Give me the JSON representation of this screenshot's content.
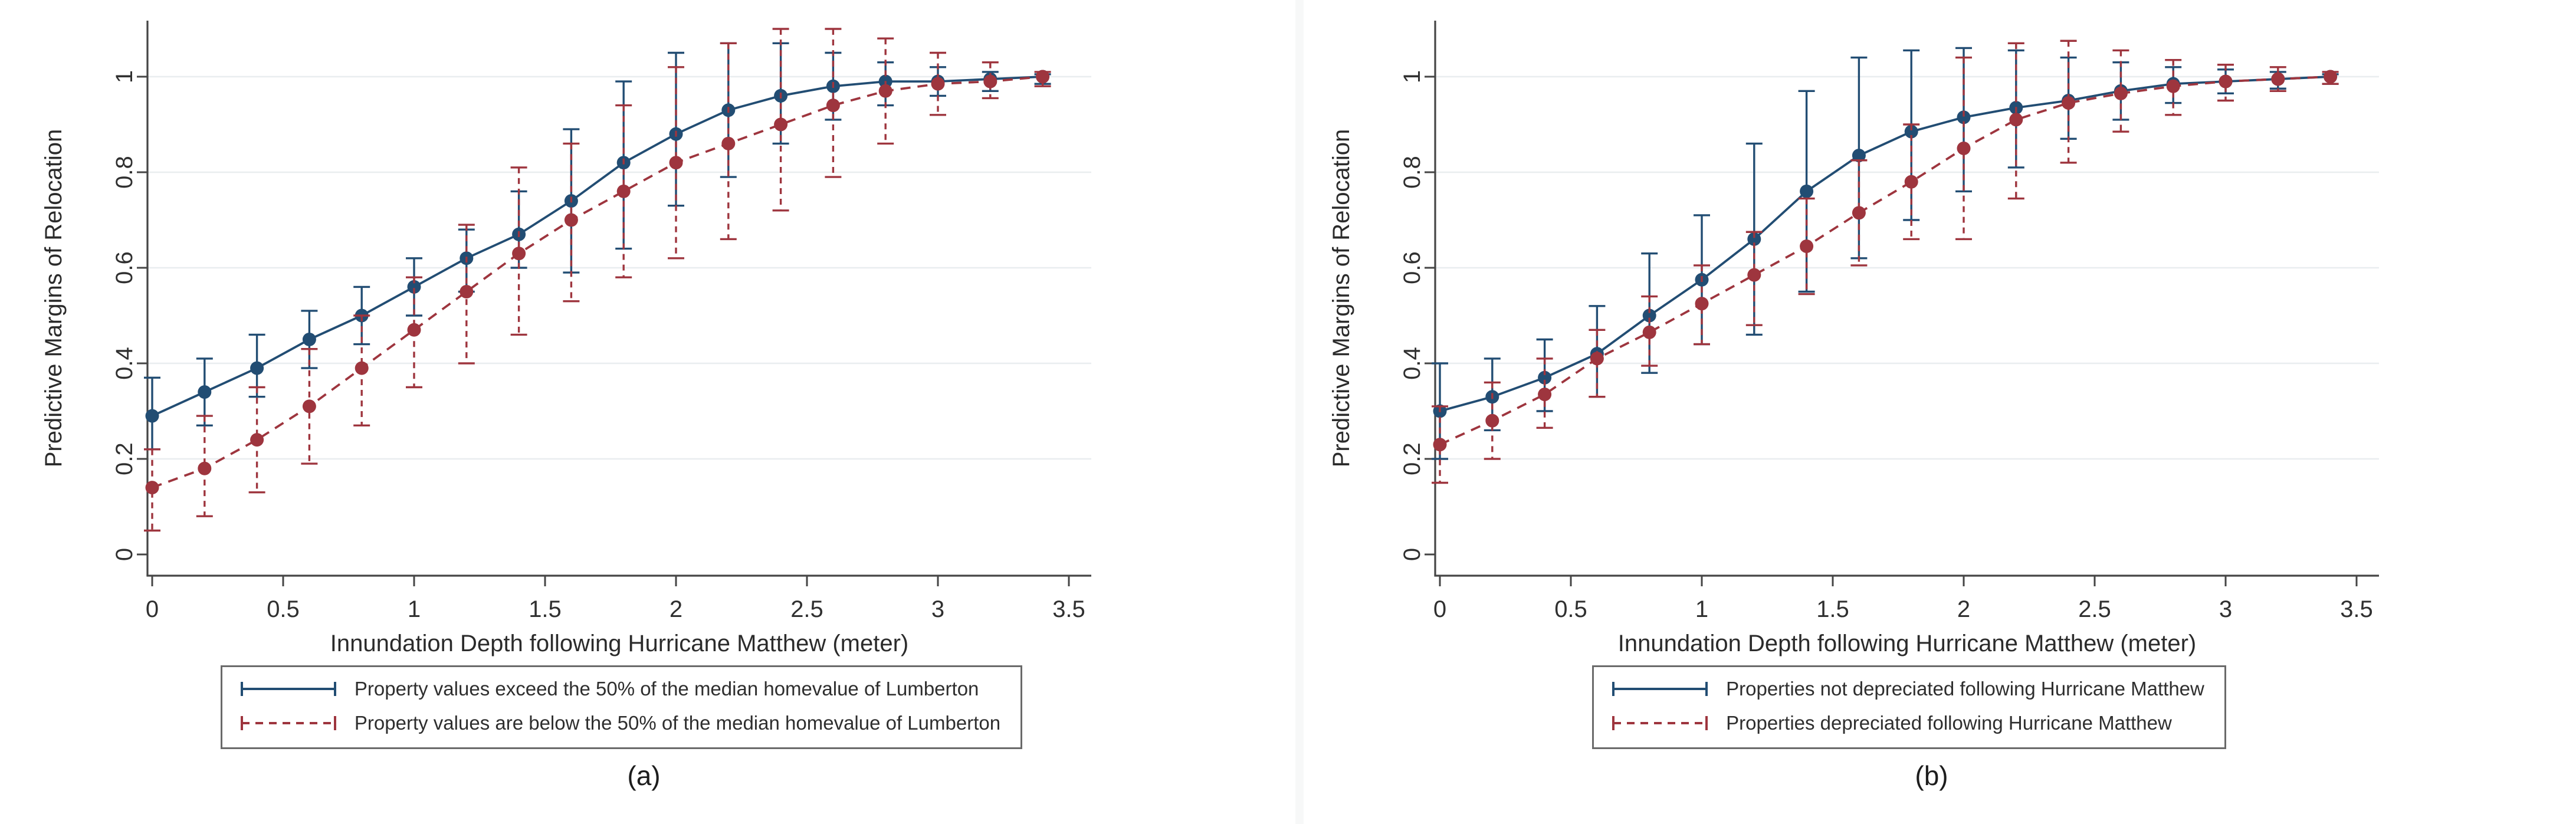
{
  "figure": {
    "colors": {
      "blue": "#224d73",
      "red": "#9e353e",
      "grid": "#e9edef",
      "axis": "#454545",
      "text": "#303030",
      "legend_border": "#6a6a6a"
    }
  },
  "chart_data": [
    {
      "type": "line",
      "caption": "(a)",
      "xlabel": "Innundation Depth following Hurricane Matthew (meter)",
      "ylabel": "Predictive Margins of Relocation",
      "xlim": [
        0,
        3.5
      ],
      "ylim": [
        0,
        1
      ],
      "grid": "horizontal gridlines on",
      "legend_position": "bottom",
      "x_tick_labels": [
        "0",
        "0.5",
        "1",
        "1.5",
        "2",
        "2.5",
        "3",
        "3.5"
      ],
      "x_tick_values": [
        0,
        0.5,
        1,
        1.5,
        2,
        2.5,
        3,
        3.5
      ],
      "y_tick_labels": [
        "0",
        "0.2",
        "0.4",
        "0.6",
        "0.8",
        "1"
      ],
      "y_tick_values": [
        0,
        0.2,
        0.4,
        0.6,
        0.8,
        1
      ],
      "x": [
        0,
        0.2,
        0.4,
        0.6,
        0.8,
        1,
        1.2,
        1.4,
        1.6,
        1.8,
        2,
        2.2,
        2.4,
        2.6,
        2.8,
        3,
        3.2,
        3.4
      ],
      "series": [
        {
          "name": "Property values exceed the 50% of the median homevalue of Lumberton",
          "color_key": "blue",
          "line_style": "solid",
          "marker": "circle",
          "values": [
            0.29,
            0.34,
            0.39,
            0.45,
            0.5,
            0.56,
            0.62,
            0.67,
            0.74,
            0.82,
            0.88,
            0.93,
            0.96,
            0.98,
            0.99,
            0.99,
            0.995,
            1.0
          ],
          "ci_low": [
            0.22,
            0.27,
            0.33,
            0.39,
            0.44,
            0.5,
            0.55,
            0.6,
            0.59,
            0.64,
            0.73,
            0.79,
            0.86,
            0.91,
            0.94,
            0.96,
            0.97,
            0.985
          ],
          "ci_high": [
            0.37,
            0.41,
            0.46,
            0.51,
            0.56,
            0.62,
            0.68,
            0.76,
            0.89,
            0.99,
            1.05,
            1.07,
            1.07,
            1.05,
            1.03,
            1.02,
            1.01,
            1.005
          ]
        },
        {
          "name": "Property values are below the 50% of the median homevalue of Lumberton",
          "color_key": "red",
          "line_style": "dashed",
          "marker": "circle",
          "values": [
            0.14,
            0.18,
            0.24,
            0.31,
            0.39,
            0.47,
            0.55,
            0.63,
            0.7,
            0.76,
            0.82,
            0.86,
            0.9,
            0.94,
            0.97,
            0.985,
            0.99,
            1.0
          ],
          "ci_low": [
            0.05,
            0.08,
            0.13,
            0.19,
            0.27,
            0.35,
            0.4,
            0.46,
            0.53,
            0.58,
            0.62,
            0.66,
            0.72,
            0.79,
            0.86,
            0.92,
            0.955,
            0.98
          ],
          "ci_high": [
            0.22,
            0.29,
            0.35,
            0.43,
            0.5,
            0.58,
            0.69,
            0.81,
            0.86,
            0.94,
            1.02,
            1.07,
            1.1,
            1.1,
            1.08,
            1.05,
            1.03,
            1.01
          ]
        }
      ]
    },
    {
      "type": "line",
      "caption": "(b)",
      "xlabel": "Innundation Depth following Hurricane Matthew (meter)",
      "ylabel": "Predictive Margins of Relocation",
      "xlim": [
        0,
        3.5
      ],
      "ylim": [
        0,
        1
      ],
      "grid": "horizontal gridlines on",
      "legend_position": "bottom",
      "x_tick_labels": [
        "0",
        "0.5",
        "1",
        "1.5",
        "2",
        "2.5",
        "3",
        "3.5"
      ],
      "x_tick_values": [
        0,
        0.5,
        1,
        1.5,
        2,
        2.5,
        3,
        3.5
      ],
      "y_tick_labels": [
        "0",
        "0.2",
        "0.4",
        "0.6",
        "0.8",
        "1"
      ],
      "y_tick_values": [
        0,
        0.2,
        0.4,
        0.6,
        0.8,
        1
      ],
      "x": [
        0,
        0.2,
        0.4,
        0.6,
        0.8,
        1,
        1.2,
        1.4,
        1.6,
        1.8,
        2,
        2.2,
        2.4,
        2.6,
        2.8,
        3,
        3.2,
        3.4
      ],
      "series": [
        {
          "name": "Properties not depreciated following Hurricane Matthew",
          "color_key": "blue",
          "line_style": "solid",
          "marker": "circle",
          "values": [
            0.3,
            0.33,
            0.37,
            0.42,
            0.5,
            0.575,
            0.66,
            0.76,
            0.835,
            0.885,
            0.915,
            0.935,
            0.95,
            0.97,
            0.985,
            0.99,
            0.995,
            1.0
          ],
          "ci_low": [
            0.2,
            0.26,
            0.3,
            0.33,
            0.38,
            0.44,
            0.46,
            0.55,
            0.62,
            0.7,
            0.76,
            0.81,
            0.87,
            0.91,
            0.945,
            0.965,
            0.975,
            0.985
          ],
          "ci_high": [
            0.4,
            0.41,
            0.45,
            0.52,
            0.63,
            0.71,
            0.86,
            0.97,
            1.04,
            1.055,
            1.06,
            1.055,
            1.04,
            1.03,
            1.02,
            1.015,
            1.01,
            1.005
          ]
        },
        {
          "name": "Properties depreciated following Hurricane Matthew",
          "color_key": "red",
          "line_style": "dashed",
          "marker": "circle",
          "values": [
            0.23,
            0.28,
            0.335,
            0.41,
            0.465,
            0.525,
            0.585,
            0.645,
            0.715,
            0.78,
            0.85,
            0.91,
            0.945,
            0.965,
            0.98,
            0.99,
            0.995,
            1.0
          ],
          "ci_low": [
            0.15,
            0.2,
            0.265,
            0.33,
            0.395,
            0.44,
            0.48,
            0.545,
            0.605,
            0.66,
            0.66,
            0.745,
            0.82,
            0.885,
            0.92,
            0.95,
            0.97,
            0.985
          ],
          "ci_high": [
            0.31,
            0.36,
            0.41,
            0.47,
            0.54,
            0.605,
            0.675,
            0.745,
            0.825,
            0.9,
            1.04,
            1.07,
            1.075,
            1.055,
            1.035,
            1.025,
            1.02,
            1.01
          ]
        }
      ]
    }
  ]
}
